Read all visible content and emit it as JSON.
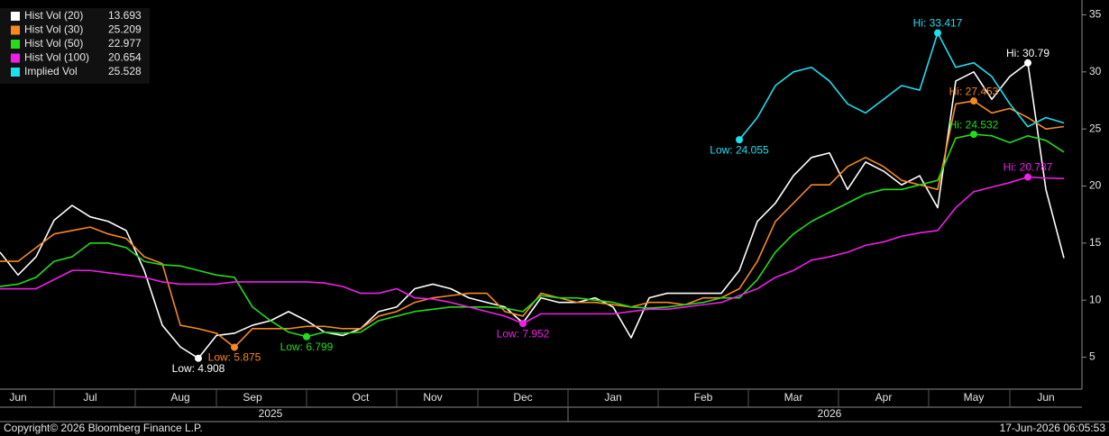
{
  "chart_data": {
    "type": "line",
    "categories": [
      null,
      "Jun",
      null,
      null,
      null,
      "Jul",
      null,
      null,
      null,
      null,
      "Aug",
      null,
      null,
      null,
      "Sep",
      null,
      null,
      null,
      null,
      null,
      "Oct",
      null,
      null,
      null,
      "Nov",
      null,
      null,
      null,
      null,
      "Dec",
      null,
      null,
      null,
      null,
      "Jan",
      null,
      null,
      null,
      null,
      "Feb",
      null,
      null,
      null,
      null,
      "Mar",
      null,
      null,
      null,
      null,
      "Apr",
      null,
      null,
      null,
      null,
      "May",
      null,
      null,
      null,
      "Jun",
      null
    ],
    "x_group_labels": [
      "2025",
      "2026"
    ],
    "series": [
      {
        "name": "Hist Vol (20)",
        "color": "#ffffff",
        "values": [
          14.2,
          12.2,
          13.8,
          17,
          18.3,
          17.3,
          16.9,
          16.1,
          12.6,
          7.8,
          5.9,
          4.908,
          6.9,
          7.1,
          7.8,
          8.2,
          9.0,
          8.2,
          7.2,
          6.9,
          7.5,
          9.0,
          9.4,
          11,
          11.4,
          11,
          10.2,
          9.8,
          9.4,
          8.0,
          10.2,
          9.8,
          9.8,
          10.2,
          9.4,
          6.7,
          10.2,
          10.6,
          10.6,
          10.6,
          10.6,
          12.6,
          16.9,
          18.5,
          20.9,
          22.5,
          22.9,
          19.7,
          22.1,
          21.3,
          20.1,
          20.9,
          18.1,
          29.2,
          30.0,
          27.6,
          29.6,
          30.79,
          19.7,
          13.693
        ],
        "value_labels": [
          null,
          null,
          null,
          null,
          null,
          null,
          null,
          null,
          null,
          null,
          null,
          "Low: 4.908",
          null,
          null,
          null,
          null,
          null,
          null,
          null,
          null,
          null,
          null,
          null,
          null,
          null,
          null,
          null,
          null,
          null,
          null,
          null,
          null,
          null,
          null,
          null,
          null,
          null,
          null,
          null,
          null,
          null,
          null,
          null,
          null,
          null,
          null,
          null,
          null,
          null,
          null,
          null,
          null,
          null,
          null,
          null,
          null,
          null,
          "Hi: 30.79",
          null,
          null
        ]
      },
      {
        "name": "Hist Vol (30)",
        "color": "#f7891f",
        "values": [
          13.4,
          13.4,
          14.6,
          15.8,
          16.1,
          16.4,
          15.8,
          15.4,
          13.8,
          13.2,
          7.8,
          7.5,
          7.1,
          5.875,
          7.5,
          7.5,
          7.5,
          7.7,
          7.7,
          7.5,
          7.5,
          8.6,
          9.0,
          9.8,
          10.2,
          10.4,
          10.6,
          10.6,
          9.0,
          8.6,
          10.6,
          10.2,
          9.8,
          9.8,
          9.6,
          9.4,
          9.8,
          9.8,
          9.6,
          10.2,
          10.2,
          11,
          13.4,
          16.9,
          18.5,
          20.1,
          20.1,
          21.7,
          22.5,
          21.7,
          20.5,
          20.1,
          19.7,
          27.2,
          27.453,
          26.4,
          26.8,
          26.0,
          25.0,
          25.209
        ],
        "value_labels": [
          null,
          null,
          null,
          null,
          null,
          null,
          null,
          null,
          null,
          null,
          null,
          null,
          null,
          "Low: 5.875",
          null,
          null,
          null,
          null,
          null,
          null,
          null,
          null,
          null,
          null,
          null,
          null,
          null,
          null,
          null,
          null,
          null,
          null,
          null,
          null,
          null,
          null,
          null,
          null,
          null,
          null,
          null,
          null,
          null,
          null,
          null,
          null,
          null,
          null,
          null,
          null,
          null,
          null,
          null,
          null,
          "Hi: 27.453",
          null,
          null,
          null,
          null,
          null
        ]
      },
      {
        "name": "Hist Vol (50)",
        "color": "#22dd1a",
        "values": [
          11.2,
          11.4,
          12,
          13.4,
          13.8,
          15,
          15,
          14.6,
          13.4,
          13.1,
          13,
          12.6,
          12.2,
          12,
          9.4,
          8.2,
          7.2,
          6.799,
          7.2,
          7.1,
          7.2,
          8.2,
          8.6,
          9.0,
          9.2,
          9.4,
          9.4,
          9.4,
          9.3,
          9.0,
          10.4,
          10.2,
          10.2,
          10,
          9.8,
          9.4,
          9.3,
          9.4,
          9.6,
          9.8,
          10.2,
          10.2,
          11.8,
          14.2,
          15.8,
          16.9,
          17.7,
          18.5,
          19.3,
          19.7,
          19.7,
          20.1,
          20.5,
          24.2,
          24.532,
          24.4,
          23.8,
          24.4,
          24.0,
          22.977
        ],
        "value_labels": [
          null,
          null,
          null,
          null,
          null,
          null,
          null,
          null,
          null,
          null,
          null,
          null,
          null,
          null,
          null,
          null,
          null,
          "Low: 6.799",
          null,
          null,
          null,
          null,
          null,
          null,
          null,
          null,
          null,
          null,
          null,
          null,
          null,
          null,
          null,
          null,
          null,
          null,
          null,
          null,
          null,
          null,
          null,
          null,
          null,
          null,
          null,
          null,
          null,
          null,
          null,
          null,
          null,
          null,
          null,
          null,
          "Hi: 24.532",
          null,
          null,
          null,
          null,
          null
        ]
      },
      {
        "name": "Hist Vol (100)",
        "color": "#f01fe8",
        "values": [
          11,
          11,
          11,
          11.8,
          12.6,
          12.6,
          12.4,
          12.2,
          12,
          11.6,
          11.4,
          11.4,
          11.4,
          11.6,
          11.6,
          11.6,
          11.6,
          11.6,
          11.5,
          11.2,
          10.6,
          10.6,
          11,
          10.2,
          10.1,
          9.8,
          9.4,
          9.0,
          8.6,
          7.952,
          8.8,
          8.8,
          8.8,
          8.8,
          8.8,
          9.0,
          9.2,
          9.2,
          9.4,
          9.6,
          9.8,
          10.4,
          11,
          12,
          12.6,
          13.5,
          13.8,
          14.2,
          14.8,
          15.1,
          15.6,
          15.9,
          16.1,
          18.1,
          19.5,
          19.9,
          20.3,
          20.787,
          20.7,
          20.654
        ],
        "value_labels": [
          null,
          null,
          null,
          null,
          null,
          null,
          null,
          null,
          null,
          null,
          null,
          null,
          null,
          null,
          null,
          null,
          null,
          null,
          null,
          null,
          null,
          null,
          null,
          null,
          null,
          null,
          null,
          null,
          null,
          "Low: 7.952",
          null,
          null,
          null,
          null,
          null,
          null,
          null,
          null,
          null,
          null,
          null,
          null,
          null,
          null,
          null,
          null,
          null,
          null,
          null,
          null,
          null,
          null,
          null,
          null,
          null,
          null,
          null,
          "Hi: 20.787",
          null,
          null
        ]
      },
      {
        "name": "Implied Vol",
        "color": "#1be0f0",
        "values": [
          null,
          null,
          null,
          null,
          null,
          null,
          null,
          null,
          null,
          null,
          null,
          null,
          null,
          null,
          null,
          null,
          null,
          null,
          null,
          null,
          null,
          null,
          null,
          null,
          null,
          null,
          null,
          null,
          null,
          null,
          null,
          null,
          null,
          null,
          null,
          null,
          null,
          null,
          null,
          null,
          null,
          24.055,
          26.0,
          28.8,
          30.0,
          30.4,
          29.2,
          27.2,
          26.4,
          27.6,
          28.8,
          28.4,
          33.417,
          30.4,
          30.8,
          29.6,
          27.2,
          25.2,
          26.0,
          25.528
        ],
        "value_labels": [
          null,
          null,
          null,
          null,
          null,
          null,
          null,
          null,
          null,
          null,
          null,
          null,
          null,
          null,
          null,
          null,
          null,
          null,
          null,
          null,
          null,
          null,
          null,
          null,
          null,
          null,
          null,
          null,
          null,
          null,
          null,
          null,
          null,
          null,
          null,
          null,
          null,
          null,
          null,
          null,
          null,
          "Low: 24.055",
          null,
          null,
          null,
          null,
          null,
          null,
          null,
          null,
          null,
          null,
          "Hi: 33.417",
          null,
          null,
          null,
          null,
          null,
          null,
          null
        ]
      }
    ],
    "ylim": [
      2.2,
      36.3
    ],
    "yticks": [
      5,
      10,
      15,
      20,
      25,
      30,
      35
    ],
    "grid": false,
    "legend": "top-left",
    "source": "Copyright© 2026 Bloomberg Finance L.P.",
    "timestamp": "17-Jun-2026 06:05:53"
  }
}
